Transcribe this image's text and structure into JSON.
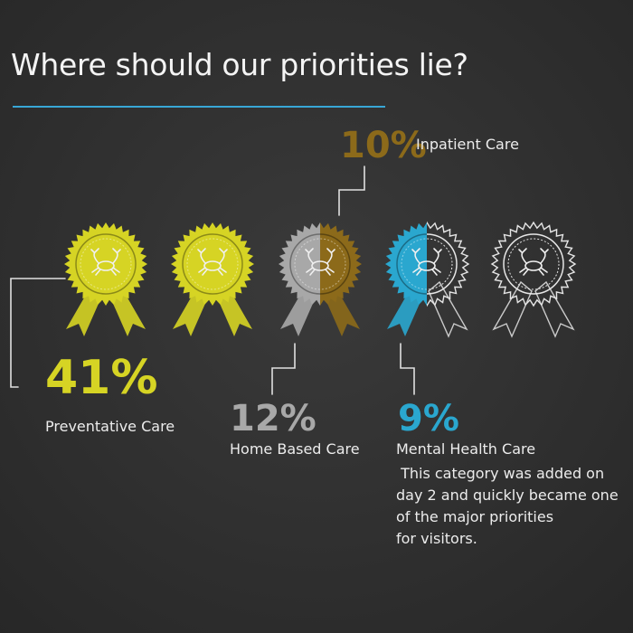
{
  "title": "Where should our priorities lie?",
  "colors": {
    "background": "#333333",
    "preventative": "#d6d424",
    "inpatient": "#8c6a1a",
    "home": "#a8a8a8",
    "mental": "#2aa7cf",
    "rule": "#38a7d6"
  },
  "icons": [
    "rosette-icon",
    "crab-icon"
  ],
  "chart_data": {
    "type": "pictograph",
    "unit": "rosette",
    "categories": [
      {
        "label": "Preventative Care",
        "value": 41,
        "display": "41%",
        "color": "#d6d424",
        "rosettes": 2.0
      },
      {
        "label": "Home Based Care",
        "value": 12,
        "display": "12%",
        "color": "#a8a8a8",
        "rosettes": 0.5
      },
      {
        "label": "Inpatient Care",
        "value": 10,
        "display": "10%",
        "color": "#8c6a1a",
        "rosettes": 0.5
      },
      {
        "label": "Mental Health Care",
        "value": 9,
        "display": "9%",
        "color": "#2aa7cf",
        "rosettes": 0.5
      }
    ],
    "rosette_count": 5,
    "annotation": " This category was added on\nday 2 and quickly became one\nof the major priorities\nfor visitors."
  }
}
